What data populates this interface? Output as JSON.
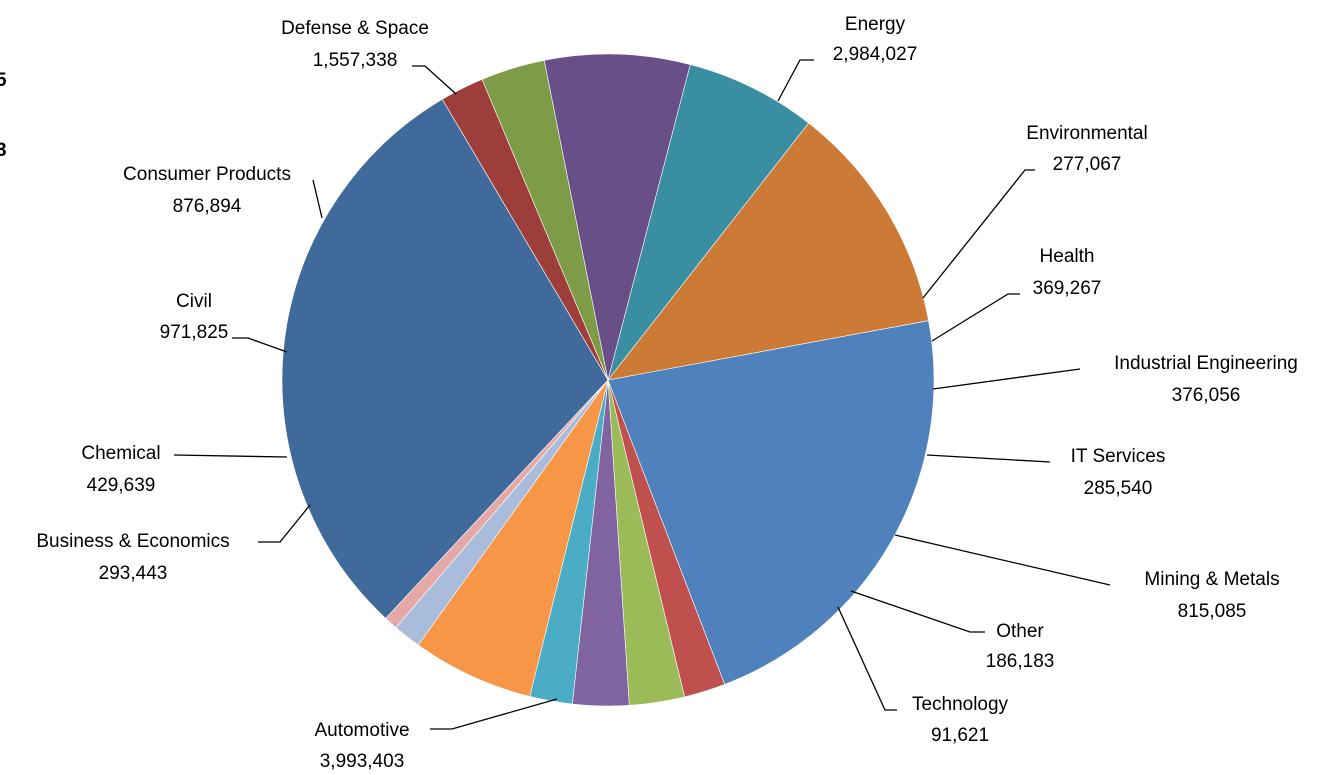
{
  "chart_data": {
    "type": "pie",
    "title": "",
    "legend": "none",
    "start_angle_deg": 79.5,
    "clipped_left_text": [
      "5",
      "3"
    ],
    "categories": [
      "Energy",
      "Environmental",
      "Health",
      "Industrial Engineering",
      "IT Services",
      "Mining & Metals",
      "Other",
      "Technology",
      "Automotive",
      "Business & Economics",
      "Chemical",
      "Civil",
      "Consumer Products",
      "Defense & Space"
    ],
    "values": [
      2984027,
      277067,
      369267,
      376056,
      285540,
      815085,
      186183,
      91621,
      3993403,
      293443,
      429639,
      971825,
      876894,
      1557338
    ],
    "value_labels": [
      "2,984,027",
      "277,067",
      "369,267",
      "376,056",
      "285,540",
      "815,085",
      "186,183",
      "91,621",
      "3,993,403",
      "293,443",
      "429,639",
      "971,825",
      "876,894",
      "1,557,338"
    ],
    "colors": [
      "#4F81BD",
      "#C0504D",
      "#9BBB59",
      "#8064A2",
      "#4BACC6",
      "#F79646",
      "#A9BCDC",
      "#E4A8A6",
      "#3F6A9B",
      "#9E3E3B",
      "#7E9B48",
      "#684F88",
      "#3A8EA2",
      "#CC7A36"
    ]
  }
}
